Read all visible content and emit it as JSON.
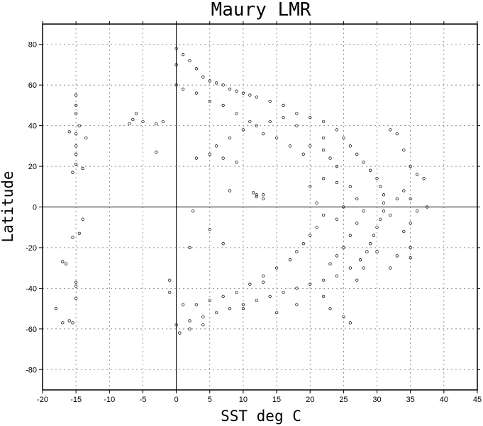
{
  "chart_data": {
    "type": "scatter",
    "title": "Maury LMR",
    "xlabel": "SST deg C",
    "ylabel": "Latitude",
    "xlim": [
      -20,
      45
    ],
    "ylim": [
      -90,
      90
    ],
    "xticks": [
      -20,
      -15,
      -10,
      -5,
      0,
      5,
      10,
      15,
      20,
      25,
      30,
      35,
      40,
      45
    ],
    "yticks": [
      -80,
      -60,
      -40,
      -20,
      0,
      20,
      40,
      60,
      80
    ],
    "grid": true,
    "zero_lines": true,
    "marker": "open-circle",
    "series": [
      {
        "points": [
          [
            0,
            78
          ],
          [
            0,
            70
          ],
          [
            0,
            60
          ],
          [
            1,
            75
          ],
          [
            2,
            72
          ],
          [
            3,
            68
          ],
          [
            4,
            64
          ],
          [
            5,
            62
          ],
          [
            6,
            61
          ],
          [
            7,
            60
          ],
          [
            8,
            58
          ],
          [
            9,
            57
          ],
          [
            10,
            56
          ],
          [
            11,
            55
          ],
          [
            12,
            54
          ],
          [
            14,
            52
          ],
          [
            16,
            50
          ],
          [
            18,
            46
          ],
          [
            20,
            44
          ],
          [
            22,
            42
          ],
          [
            24,
            38
          ],
          [
            25,
            34
          ],
          [
            26,
            30
          ],
          [
            27,
            26
          ],
          [
            28,
            22
          ],
          [
            29,
            18
          ],
          [
            30,
            14
          ],
          [
            30.5,
            10
          ],
          [
            31,
            6
          ],
          [
            31,
            2
          ],
          [
            31,
            -2
          ],
          [
            30.5,
            -6
          ],
          [
            30,
            -10
          ],
          [
            29.5,
            -14
          ],
          [
            29,
            -18
          ],
          [
            28.5,
            -22
          ],
          [
            27.5,
            -26
          ],
          [
            26,
            -30
          ],
          [
            24,
            -34
          ],
          [
            22,
            -36
          ],
          [
            20,
            -38
          ],
          [
            18,
            -40
          ],
          [
            16,
            -42
          ],
          [
            14,
            -44
          ],
          [
            12,
            -46
          ],
          [
            10,
            -48
          ],
          [
            8,
            -50
          ],
          [
            6,
            -52
          ],
          [
            4,
            -54
          ],
          [
            2,
            -56
          ],
          [
            0,
            -58
          ],
          [
            0.5,
            -62
          ],
          [
            2,
            -60
          ],
          [
            4,
            -58
          ],
          [
            1,
            -48
          ],
          [
            -1,
            -42
          ],
          [
            -1,
            -36
          ],
          [
            -2,
            42
          ],
          [
            -3,
            41
          ],
          [
            -5,
            42
          ],
          [
            -6,
            46
          ],
          [
            -6.5,
            43
          ],
          [
            -7,
            41
          ],
          [
            -15,
            55
          ],
          [
            -15,
            50
          ],
          [
            -15,
            46
          ],
          [
            -14.5,
            40
          ],
          [
            -15,
            36
          ],
          [
            -16,
            37
          ],
          [
            -15,
            30
          ],
          [
            -15,
            26
          ],
          [
            -15,
            21
          ],
          [
            -15.5,
            17
          ],
          [
            -14,
            19
          ],
          [
            -13.5,
            34
          ],
          [
            -14,
            -6
          ],
          [
            -14.5,
            -13
          ],
          [
            -15.5,
            -15
          ],
          [
            -15,
            -37
          ],
          [
            -15,
            -39
          ],
          [
            -15,
            -45
          ],
          [
            -16,
            -56
          ],
          [
            -15.5,
            -57
          ],
          [
            -17,
            -27
          ],
          [
            -16.5,
            -28
          ],
          [
            -17,
            -57
          ],
          [
            -18,
            -50
          ],
          [
            12,
            6
          ],
          [
            12,
            5
          ],
          [
            13,
            6
          ],
          [
            13,
            4
          ],
          [
            11.5,
            7
          ],
          [
            8,
            8
          ],
          [
            2.5,
            -2
          ],
          [
            5,
            -11
          ],
          [
            7,
            -18
          ],
          [
            13,
            -37
          ],
          [
            10,
            -50
          ],
          [
            2,
            -20
          ],
          [
            -3,
            27
          ],
          [
            32,
            38
          ],
          [
            33,
            36
          ],
          [
            34,
            28
          ],
          [
            35,
            20
          ],
          [
            36,
            16
          ],
          [
            37,
            14
          ],
          [
            37.5,
            0
          ],
          [
            35,
            -8
          ],
          [
            34,
            -12
          ],
          [
            35,
            -20
          ],
          [
            35,
            -25
          ],
          [
            33,
            -24
          ],
          [
            32,
            -30
          ],
          [
            25,
            -54
          ],
          [
            26,
            -57
          ],
          [
            23,
            -50
          ],
          [
            15,
            -52
          ],
          [
            18,
            -48
          ],
          [
            22,
            -44
          ],
          [
            27,
            -36
          ],
          [
            28,
            -30
          ],
          [
            30,
            -22
          ],
          [
            32,
            -4
          ],
          [
            33,
            4
          ],
          [
            34,
            8
          ],
          [
            35,
            4
          ],
          [
            36,
            -2
          ],
          [
            3,
            24
          ],
          [
            5,
            26
          ],
          [
            7,
            24
          ],
          [
            9,
            22
          ],
          [
            6,
            30
          ],
          [
            8,
            34
          ],
          [
            10,
            38
          ],
          [
            12,
            40
          ],
          [
            14,
            42
          ],
          [
            16,
            44
          ],
          [
            18,
            40
          ],
          [
            20,
            30
          ],
          [
            22,
            28
          ],
          [
            24,
            20
          ],
          [
            22,
            14
          ],
          [
            20,
            10
          ],
          [
            21,
            2
          ],
          [
            22,
            -4
          ],
          [
            21,
            -10
          ],
          [
            20,
            -14
          ],
          [
            19,
            -18
          ],
          [
            18,
            -22
          ],
          [
            17,
            -26
          ],
          [
            15,
            -30
          ],
          [
            13,
            -34
          ],
          [
            11,
            -38
          ],
          [
            9,
            -42
          ],
          [
            7,
            -44
          ],
          [
            5,
            -46
          ],
          [
            3,
            -48
          ],
          [
            26,
            10
          ],
          [
            27,
            4
          ],
          [
            28,
            -2
          ],
          [
            27,
            -8
          ],
          [
            26,
            -14
          ],
          [
            25,
            -20
          ],
          [
            24,
            -24
          ],
          [
            23,
            -28
          ],
          [
            22,
            34
          ],
          [
            23,
            24
          ],
          [
            24,
            12
          ],
          [
            25,
            0
          ],
          [
            24,
            -6
          ],
          [
            19,
            26
          ],
          [
            17,
            30
          ],
          [
            15,
            34
          ],
          [
            13,
            36
          ],
          [
            11,
            42
          ],
          [
            9,
            46
          ],
          [
            7,
            50
          ],
          [
            5,
            52
          ],
          [
            3,
            56
          ],
          [
            1,
            58
          ]
        ]
      }
    ]
  }
}
